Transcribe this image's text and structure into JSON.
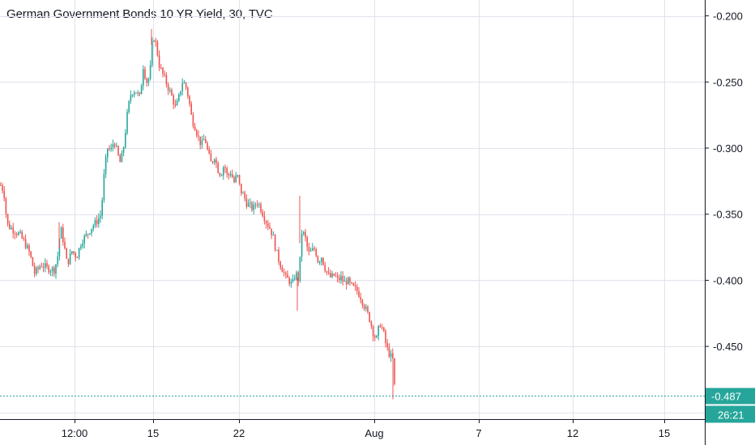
{
  "chart_data": {
    "type": "candlestick",
    "title": "German Government Bonds 10 YR Yield, 30, TVC",
    "x_ticks": [
      "12:00",
      "15",
      "22",
      "Aug",
      "7",
      "12",
      "15"
    ],
    "y_ticks": [
      "-0.200",
      "-0.250",
      "-0.300",
      "-0.350",
      "-0.400",
      "-0.450"
    ],
    "ylim": [
      -0.505,
      -0.188
    ],
    "last_value": "-0.487",
    "countdown": "26:21",
    "grid": true,
    "colors": {
      "up": "#26a69a",
      "down": "#ef5350",
      "last_line": "#26a69a",
      "label_bg": "#26a69a"
    },
    "close_path": [
      [
        0,
        -0.328
      ],
      [
        4,
        -0.333
      ],
      [
        8,
        -0.358
      ],
      [
        16,
        -0.362
      ],
      [
        24,
        -0.366
      ],
      [
        30,
        -0.372
      ],
      [
        36,
        -0.38
      ],
      [
        42,
        -0.395
      ],
      [
        50,
        -0.388
      ],
      [
        58,
        -0.391
      ],
      [
        66,
        -0.392
      ],
      [
        70,
        -0.384
      ],
      [
        74,
        -0.36
      ],
      [
        78,
        -0.372
      ],
      [
        82,
        -0.388
      ],
      [
        88,
        -0.378
      ],
      [
        94,
        -0.382
      ],
      [
        100,
        -0.37
      ],
      [
        106,
        -0.366
      ],
      [
        112,
        -0.36
      ],
      [
        118,
        -0.356
      ],
      [
        124,
        -0.35
      ],
      [
        128,
        -0.318
      ],
      [
        132,
        -0.3
      ],
      [
        136,
        -0.302
      ],
      [
        140,
        -0.294
      ],
      [
        144,
        -0.304
      ],
      [
        148,
        -0.312
      ],
      [
        152,
        -0.298
      ],
      [
        156,
        -0.276
      ],
      [
        160,
        -0.26
      ],
      [
        164,
        -0.256
      ],
      [
        168,
        -0.258
      ],
      [
        172,
        -0.262
      ],
      [
        176,
        -0.238
      ],
      [
        180,
        -0.25
      ],
      [
        184,
        -0.246
      ],
      [
        188,
        -0.214
      ],
      [
        192,
        -0.222
      ],
      [
        196,
        -0.238
      ],
      [
        200,
        -0.244
      ],
      [
        204,
        -0.25
      ],
      [
        208,
        -0.256
      ],
      [
        212,
        -0.262
      ],
      [
        216,
        -0.27
      ],
      [
        220,
        -0.262
      ],
      [
        224,
        -0.25
      ],
      [
        228,
        -0.252
      ],
      [
        232,
        -0.262
      ],
      [
        236,
        -0.278
      ],
      [
        240,
        -0.284
      ],
      [
        244,
        -0.292
      ],
      [
        248,
        -0.298
      ],
      [
        252,
        -0.292
      ],
      [
        256,
        -0.304
      ],
      [
        260,
        -0.312
      ],
      [
        264,
        -0.306
      ],
      [
        268,
        -0.316
      ],
      [
        272,
        -0.32
      ],
      [
        276,
        -0.312
      ],
      [
        280,
        -0.322
      ],
      [
        284,
        -0.318
      ],
      [
        288,
        -0.326
      ],
      [
        292,
        -0.32
      ],
      [
        296,
        -0.332
      ],
      [
        300,
        -0.336
      ],
      [
        304,
        -0.342
      ],
      [
        308,
        -0.344
      ],
      [
        312,
        -0.346
      ],
      [
        316,
        -0.34
      ],
      [
        320,
        -0.344
      ],
      [
        324,
        -0.35
      ],
      [
        328,
        -0.356
      ],
      [
        332,
        -0.36
      ],
      [
        336,
        -0.366
      ],
      [
        340,
        -0.378
      ],
      [
        344,
        -0.386
      ],
      [
        348,
        -0.392
      ],
      [
        352,
        -0.398
      ],
      [
        356,
        -0.4
      ],
      [
        360,
        -0.404
      ],
      [
        364,
        -0.394
      ],
      [
        368,
        -0.4
      ],
      [
        372,
        -0.362
      ],
      [
        376,
        -0.368
      ],
      [
        380,
        -0.38
      ],
      [
        384,
        -0.378
      ],
      [
        388,
        -0.376
      ],
      [
        392,
        -0.386
      ],
      [
        396,
        -0.382
      ],
      [
        400,
        -0.39
      ],
      [
        404,
        -0.396
      ],
      [
        408,
        -0.398
      ],
      [
        412,
        -0.396
      ],
      [
        416,
        -0.4
      ],
      [
        420,
        -0.398
      ],
      [
        424,
        -0.402
      ],
      [
        428,
        -0.4
      ],
      [
        432,
        -0.404
      ],
      [
        436,
        -0.406
      ],
      [
        440,
        -0.408
      ],
      [
        444,
        -0.412
      ],
      [
        448,
        -0.418
      ],
      [
        452,
        -0.424
      ],
      [
        456,
        -0.43
      ],
      [
        460,
        -0.44
      ],
      [
        464,
        -0.445
      ],
      [
        468,
        -0.432
      ],
      [
        472,
        -0.438
      ],
      [
        476,
        -0.45
      ],
      [
        480,
        -0.456
      ],
      [
        484,
        -0.46
      ],
      [
        487,
        -0.487
      ]
    ]
  }
}
